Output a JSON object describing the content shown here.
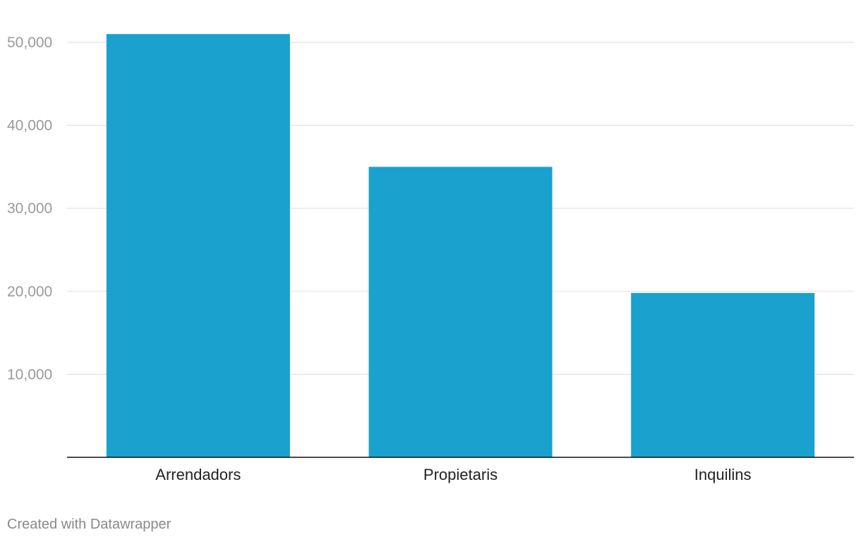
{
  "chart_data": {
    "type": "bar",
    "categories": [
      "Arrendadors",
      "Propietaris",
      "Inquilins"
    ],
    "values": [
      51000,
      35000,
      19800
    ],
    "ylim": [
      0,
      50000
    ],
    "yticks": [
      10000,
      20000,
      30000,
      40000,
      50000
    ],
    "ytick_labels": [
      "10,000",
      "20,000",
      "30,000",
      "40,000",
      "50,000"
    ],
    "bar_color": "#1aa1cd",
    "grid": true,
    "title": "",
    "xlabel": "",
    "ylabel": ""
  },
  "footer": {
    "credit": "Created with Datawrapper"
  }
}
